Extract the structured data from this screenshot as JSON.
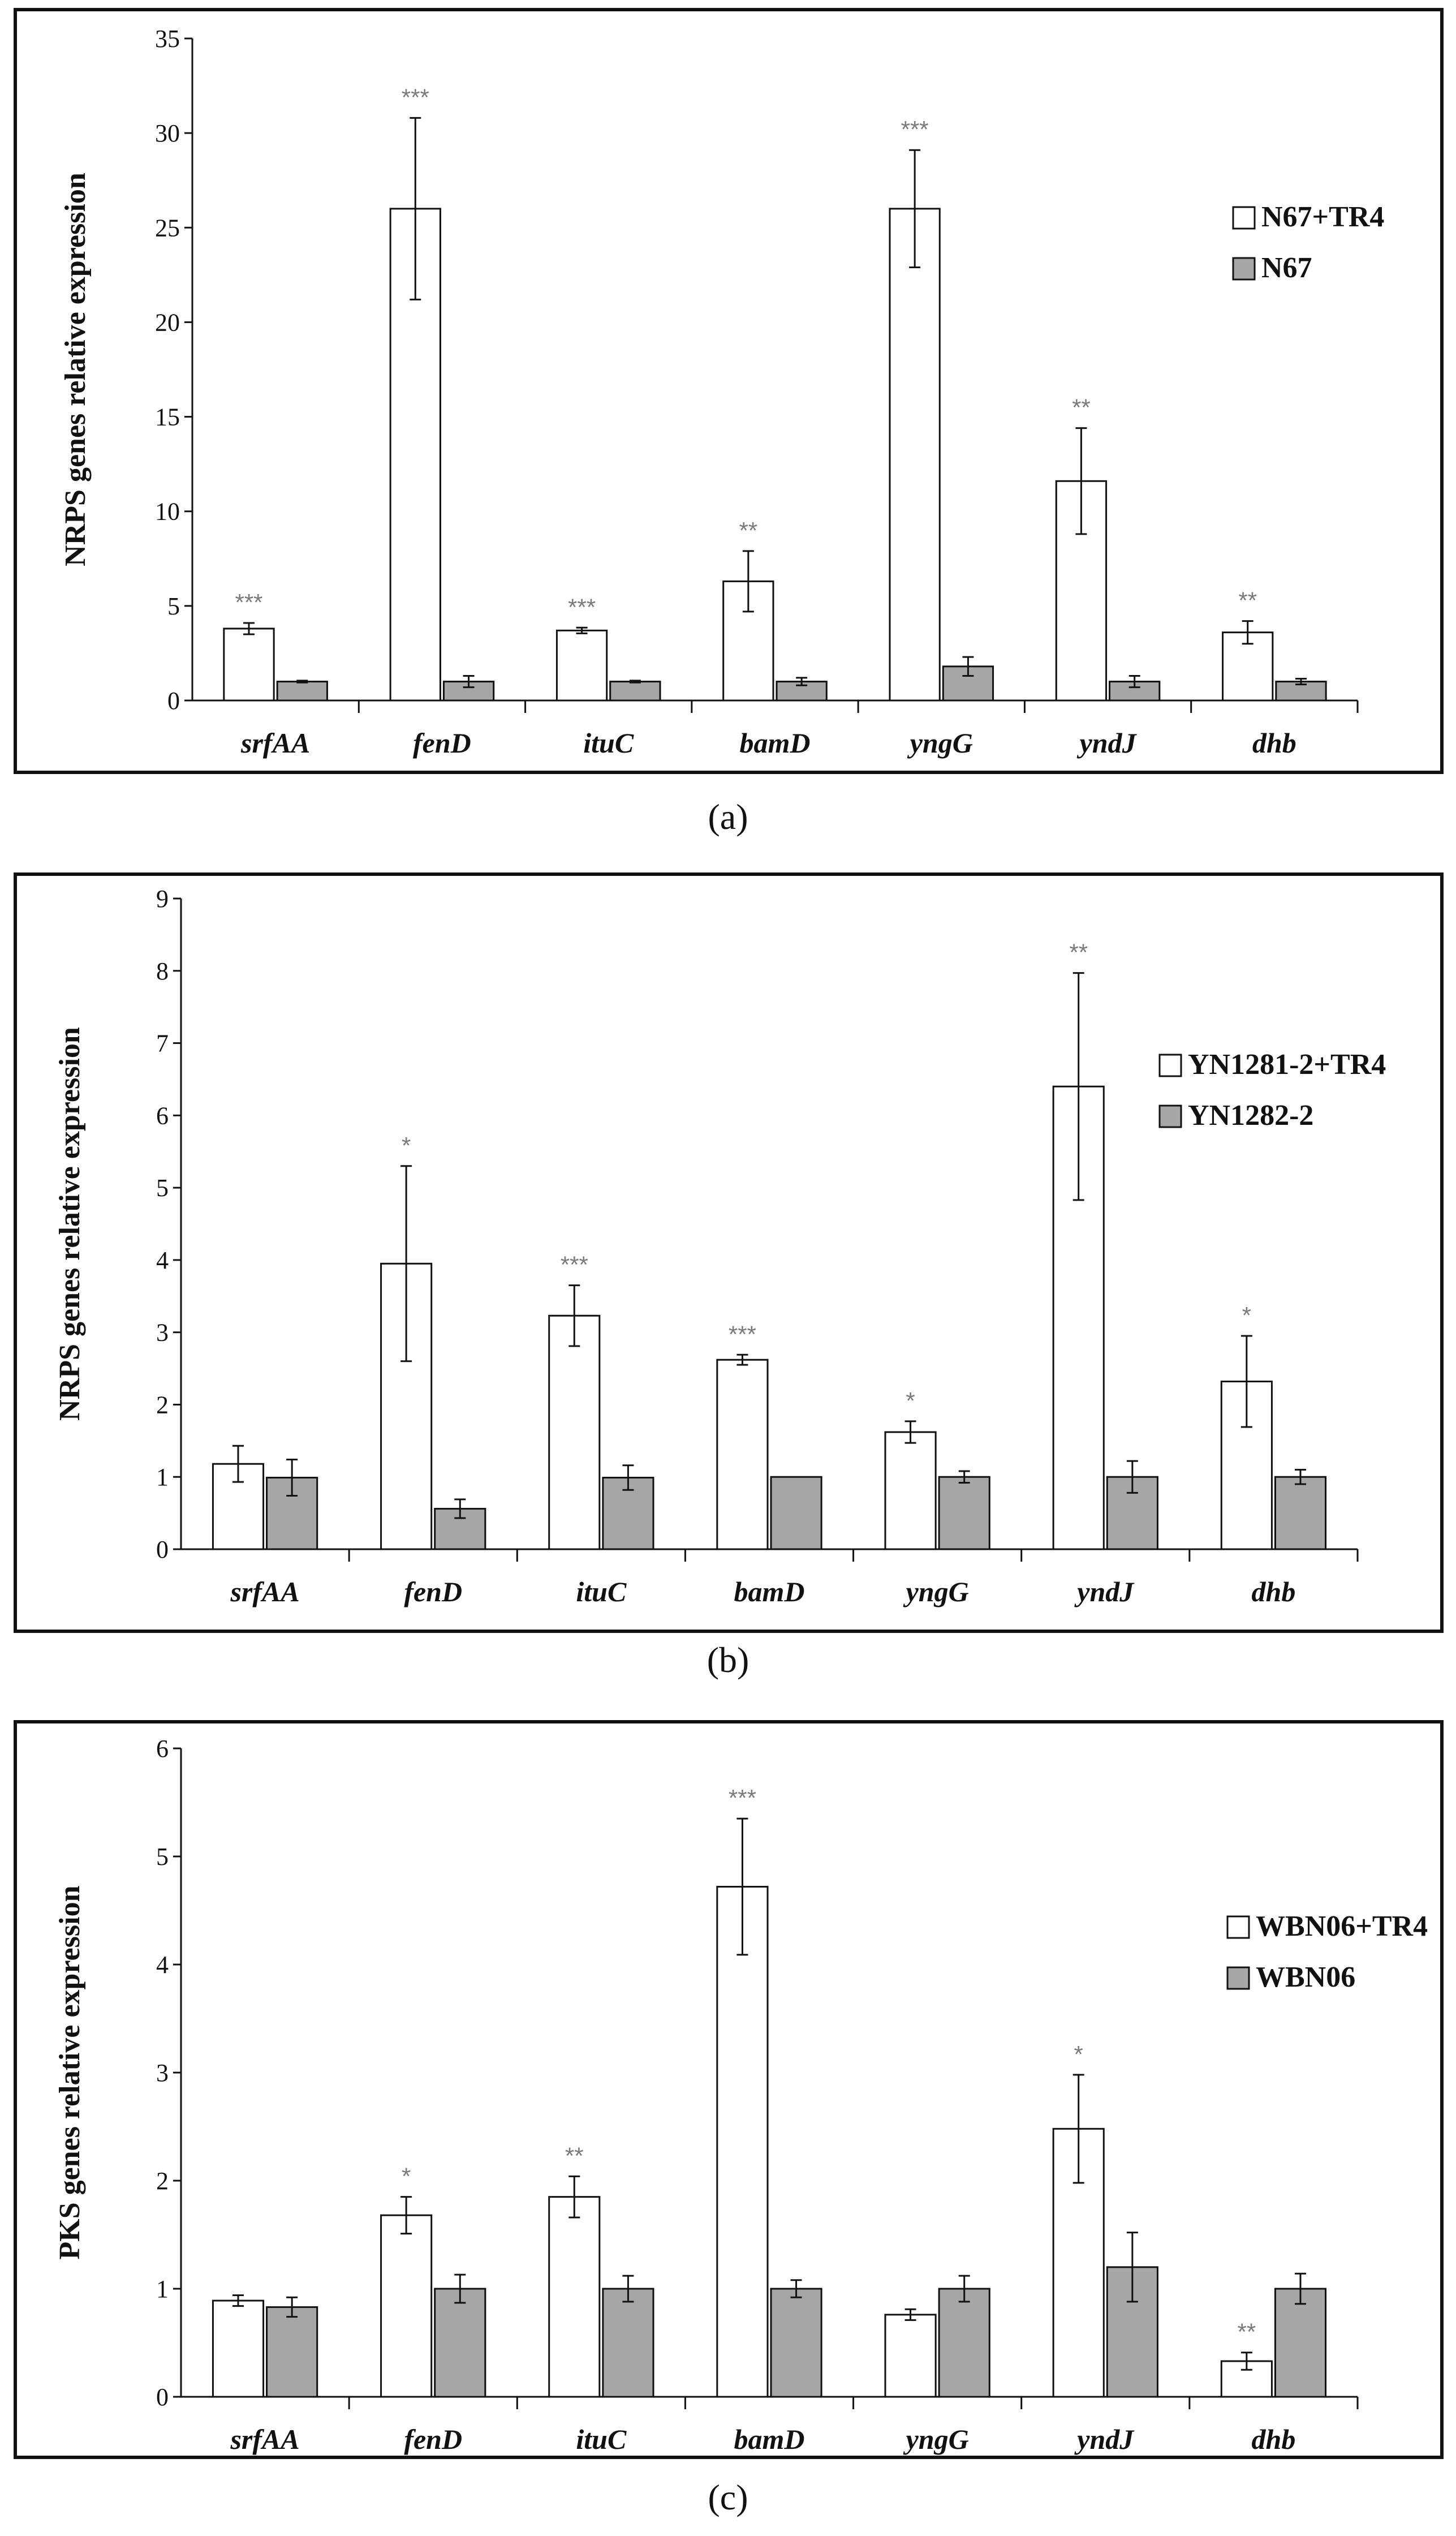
{
  "captions": [
    "(a)",
    "(b)",
    "(c)"
  ],
  "colors": {
    "treated": "#ffffff",
    "control": "#a6a6a6",
    "stroke": "#111111",
    "significance": "#7a7a7a"
  },
  "chart_data": [
    {
      "type": "bar",
      "ylabel": "NRPS genes relative expression",
      "ylim": [
        0,
        35
      ],
      "yticks": [
        0,
        5,
        10,
        15,
        20,
        25,
        30,
        35
      ],
      "legend_position": "right",
      "categories": [
        "srfAA",
        "fenD",
        "ituC",
        "bamD",
        "yngG",
        "yndJ",
        "dhb"
      ],
      "series": [
        {
          "name": "N67+TR4",
          "values": [
            3.8,
            26.0,
            3.7,
            6.3,
            26.0,
            11.6,
            3.6
          ],
          "errors": [
            0.3,
            4.8,
            0.15,
            1.6,
            3.1,
            2.8,
            0.6
          ]
        },
        {
          "name": "N67",
          "values": [
            1.0,
            1.0,
            1.0,
            1.0,
            1.8,
            1.0,
            1.0
          ],
          "errors": [
            0.05,
            0.3,
            0.05,
            0.2,
            0.5,
            0.3,
            0.15
          ]
        }
      ],
      "significance": [
        "***",
        "***",
        "***",
        "**",
        "***",
        "**",
        "**"
      ]
    },
    {
      "type": "bar",
      "ylabel": "NRPS genes relative expression",
      "ylim": [
        0,
        9
      ],
      "yticks": [
        0,
        1,
        2,
        3,
        4,
        5,
        6,
        7,
        8,
        9
      ],
      "legend_position": "right",
      "categories": [
        "srfAA",
        "fenD",
        "ituC",
        "bamD",
        "yngG",
        "yndJ",
        "dhb"
      ],
      "series": [
        {
          "name": "YN1281-2+TR4",
          "values": [
            1.18,
            3.95,
            3.23,
            2.62,
            1.62,
            6.4,
            2.32
          ],
          "errors": [
            0.25,
            1.35,
            0.42,
            0.07,
            0.15,
            1.57,
            0.63
          ]
        },
        {
          "name": "YN1282-2",
          "values": [
            0.99,
            0.56,
            0.99,
            1.0,
            1.0,
            1.0,
            1.0
          ],
          "errors": [
            0.25,
            0.13,
            0.17,
            0.0,
            0.08,
            0.22,
            0.1
          ]
        }
      ],
      "significance": [
        "",
        "*",
        "***",
        "***",
        "*",
        "**",
        "*"
      ]
    },
    {
      "type": "bar",
      "ylabel": "PKS genes relative expression",
      "ylim": [
        0,
        6
      ],
      "yticks": [
        0,
        1,
        2,
        3,
        4,
        5,
        6
      ],
      "legend_position": "right",
      "categories": [
        "srfAA",
        "fenD",
        "ituC",
        "bamD",
        "yngG",
        "yndJ",
        "dhb"
      ],
      "series": [
        {
          "name": "WBN06+TR4",
          "values": [
            0.89,
            1.68,
            1.85,
            4.72,
            0.76,
            2.48,
            0.33
          ],
          "errors": [
            0.05,
            0.17,
            0.19,
            0.63,
            0.05,
            0.5,
            0.08
          ]
        },
        {
          "name": "WBN06",
          "values": [
            0.83,
            1.0,
            1.0,
            1.0,
            1.0,
            1.2,
            1.0
          ],
          "errors": [
            0.09,
            0.13,
            0.12,
            0.08,
            0.12,
            0.32,
            0.14
          ]
        }
      ],
      "significance": [
        "",
        "*",
        "**",
        "***",
        "",
        "*",
        "**"
      ]
    }
  ]
}
